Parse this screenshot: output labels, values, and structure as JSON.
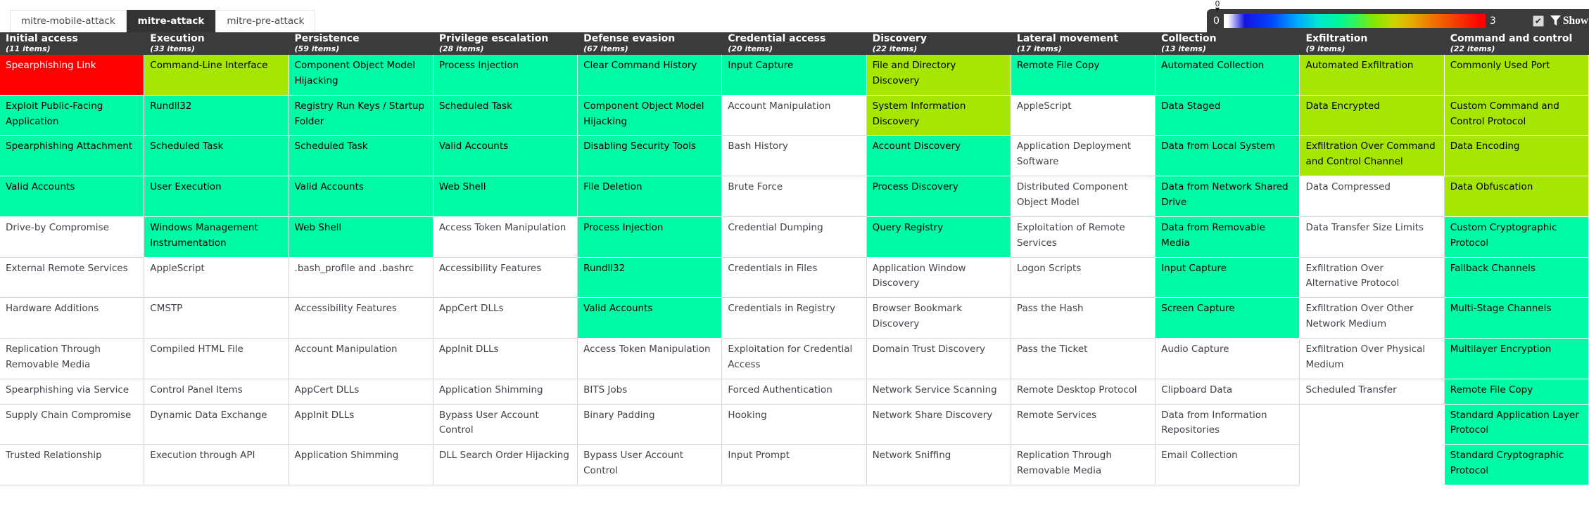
{
  "tabs": [
    {
      "label": "mitre-mobile-attack",
      "active": false
    },
    {
      "label": "mitre-attack",
      "active": true
    },
    {
      "label": "mitre-pre-attack",
      "active": false
    }
  ],
  "legend": {
    "min": "0",
    "max": "3",
    "handle_value": "0",
    "filter_checked": true,
    "checkmark": "✔",
    "show_all_label": "Show all"
  },
  "colors": {
    "score_1_green": "#00faa5",
    "score_2_lime": "#a5e603",
    "score_3_red": "#fe0000",
    "header_bg": "#3b3b3b"
  },
  "matrix": {
    "columns": [
      {
        "name": "Initial access",
        "count": "(11 items)",
        "items": [
          {
            "label": "Spearphishing Link",
            "color": "red"
          },
          {
            "label": "Exploit Public-Facing Application",
            "color": "green"
          },
          {
            "label": "Spearphishing Attachment",
            "color": "green"
          },
          {
            "label": "Valid Accounts",
            "color": "green"
          },
          {
            "label": "Drive-by Compromise",
            "color": "none"
          },
          {
            "label": "External Remote Services",
            "color": "none"
          },
          {
            "label": "Hardware Additions",
            "color": "none"
          },
          {
            "label": "Replication Through Removable Media",
            "color": "none"
          },
          {
            "label": "Spearphishing via Service",
            "color": "none"
          },
          {
            "label": "Supply Chain Compromise",
            "color": "none"
          },
          {
            "label": "Trusted Relationship",
            "color": "none"
          }
        ]
      },
      {
        "name": "Execution",
        "count": "(33 items)",
        "items": [
          {
            "label": "Command-Line Interface",
            "color": "lime"
          },
          {
            "label": "Rundll32",
            "color": "green"
          },
          {
            "label": "Scheduled Task",
            "color": "green"
          },
          {
            "label": "User Execution",
            "color": "green"
          },
          {
            "label": "Windows Management Instrumentation",
            "color": "green"
          },
          {
            "label": "AppleScript",
            "color": "none"
          },
          {
            "label": "CMSTP",
            "color": "none"
          },
          {
            "label": "Compiled HTML File",
            "color": "none"
          },
          {
            "label": "Control Panel Items",
            "color": "none"
          },
          {
            "label": "Dynamic Data Exchange",
            "color": "none"
          },
          {
            "label": "Execution through API",
            "color": "none"
          }
        ]
      },
      {
        "name": "Persistence",
        "count": "(59 items)",
        "items": [
          {
            "label": "Component Object Model Hijacking",
            "color": "green"
          },
          {
            "label": "Registry Run Keys / Startup Folder",
            "color": "green"
          },
          {
            "label": "Scheduled Task",
            "color": "green"
          },
          {
            "label": "Valid Accounts",
            "color": "green"
          },
          {
            "label": "Web Shell",
            "color": "green"
          },
          {
            "label": ".bash_profile and .bashrc",
            "color": "none"
          },
          {
            "label": "Accessibility Features",
            "color": "none"
          },
          {
            "label": "Account Manipulation",
            "color": "none"
          },
          {
            "label": "AppCert DLLs",
            "color": "none"
          },
          {
            "label": "AppInit DLLs",
            "color": "none"
          },
          {
            "label": "Application Shimming",
            "color": "none"
          }
        ]
      },
      {
        "name": "Privilege escalation",
        "count": "(28 items)",
        "items": [
          {
            "label": "Process Injection",
            "color": "green"
          },
          {
            "label": "Scheduled Task",
            "color": "green"
          },
          {
            "label": "Valid Accounts",
            "color": "green"
          },
          {
            "label": "Web Shell",
            "color": "green"
          },
          {
            "label": "Access Token Manipulation",
            "color": "none"
          },
          {
            "label": "Accessibility Features",
            "color": "none"
          },
          {
            "label": "AppCert DLLs",
            "color": "none"
          },
          {
            "label": "AppInit DLLs",
            "color": "none"
          },
          {
            "label": "Application Shimming",
            "color": "none"
          },
          {
            "label": "Bypass User Account Control",
            "color": "none"
          },
          {
            "label": "DLL Search Order Hijacking",
            "color": "none"
          }
        ]
      },
      {
        "name": "Defense evasion",
        "count": "(67 items)",
        "items": [
          {
            "label": "Clear Command History",
            "color": "green"
          },
          {
            "label": "Component Object Model Hijacking",
            "color": "green"
          },
          {
            "label": "Disabling Security Tools",
            "color": "green"
          },
          {
            "label": "File Deletion",
            "color": "green"
          },
          {
            "label": "Process Injection",
            "color": "green"
          },
          {
            "label": "Rundll32",
            "color": "green"
          },
          {
            "label": "Valid Accounts",
            "color": "green"
          },
          {
            "label": "Access Token Manipulation",
            "color": "none"
          },
          {
            "label": "BITS Jobs",
            "color": "none"
          },
          {
            "label": "Binary Padding",
            "color": "none"
          },
          {
            "label": "Bypass User Account Control",
            "color": "none"
          }
        ]
      },
      {
        "name": "Credential access",
        "count": "(20 items)",
        "items": [
          {
            "label": "Input Capture",
            "color": "green"
          },
          {
            "label": "Account Manipulation",
            "color": "none"
          },
          {
            "label": "Bash History",
            "color": "none"
          },
          {
            "label": "Brute Force",
            "color": "none"
          },
          {
            "label": "Credential Dumping",
            "color": "none"
          },
          {
            "label": "Credentials in Files",
            "color": "none"
          },
          {
            "label": "Credentials in Registry",
            "color": "none"
          },
          {
            "label": "Exploitation for Credential Access",
            "color": "none"
          },
          {
            "label": "Forced Authentication",
            "color": "none"
          },
          {
            "label": "Hooking",
            "color": "none"
          },
          {
            "label": "Input Prompt",
            "color": "none"
          }
        ]
      },
      {
        "name": "Discovery",
        "count": "(22 items)",
        "items": [
          {
            "label": "File and Directory Discovery",
            "color": "lime"
          },
          {
            "label": "System Information Discovery",
            "color": "lime"
          },
          {
            "label": "Account Discovery",
            "color": "green"
          },
          {
            "label": "Process Discovery",
            "color": "green"
          },
          {
            "label": "Query Registry",
            "color": "green"
          },
          {
            "label": "Application Window Discovery",
            "color": "none"
          },
          {
            "label": "Browser Bookmark Discovery",
            "color": "none"
          },
          {
            "label": "Domain Trust Discovery",
            "color": "none"
          },
          {
            "label": "Network Service Scanning",
            "color": "none"
          },
          {
            "label": "Network Share Discovery",
            "color": "none"
          },
          {
            "label": "Network Sniffing",
            "color": "none"
          }
        ]
      },
      {
        "name": "Lateral movement",
        "count": "(17 items)",
        "items": [
          {
            "label": "Remote File Copy",
            "color": "green"
          },
          {
            "label": "AppleScript",
            "color": "none"
          },
          {
            "label": "Application Deployment Software",
            "color": "none"
          },
          {
            "label": "Distributed Component Object Model",
            "color": "none"
          },
          {
            "label": "Exploitation of Remote Services",
            "color": "none"
          },
          {
            "label": "Logon Scripts",
            "color": "none"
          },
          {
            "label": "Pass the Hash",
            "color": "none"
          },
          {
            "label": "Pass the Ticket",
            "color": "none"
          },
          {
            "label": "Remote Desktop Protocol",
            "color": "none"
          },
          {
            "label": "Remote Services",
            "color": "none"
          },
          {
            "label": "Replication Through Removable Media",
            "color": "none"
          }
        ]
      },
      {
        "name": "Collection",
        "count": "(13 items)",
        "items": [
          {
            "label": "Automated Collection",
            "color": "green"
          },
          {
            "label": "Data Staged",
            "color": "green"
          },
          {
            "label": "Data from Local System",
            "color": "green"
          },
          {
            "label": "Data from Network Shared Drive",
            "color": "green"
          },
          {
            "label": "Data from Removable Media",
            "color": "green"
          },
          {
            "label": "Input Capture",
            "color": "green"
          },
          {
            "label": "Screen Capture",
            "color": "green"
          },
          {
            "label": "Audio Capture",
            "color": "none"
          },
          {
            "label": "Clipboard Data",
            "color": "none"
          },
          {
            "label": "Data from Information Repositories",
            "color": "none"
          },
          {
            "label": "Email Collection",
            "color": "none"
          }
        ]
      },
      {
        "name": "Exfiltration",
        "count": "(9 items)",
        "items": [
          {
            "label": "Automated Exfiltration",
            "color": "lime"
          },
          {
            "label": "Data Encrypted",
            "color": "lime"
          },
          {
            "label": "Exfiltration Over Command and Control Channel",
            "color": "lime"
          },
          {
            "label": "Data Compressed",
            "color": "none"
          },
          {
            "label": "Data Transfer Size Limits",
            "color": "none"
          },
          {
            "label": "Exfiltration Over Alternative Protocol",
            "color": "none"
          },
          {
            "label": "Exfiltration Over Other Network Medium",
            "color": "none"
          },
          {
            "label": "Exfiltration Over Physical Medium",
            "color": "none"
          },
          {
            "label": "Scheduled Transfer",
            "color": "none"
          }
        ]
      },
      {
        "name": "Command and control",
        "count": "(22 items)",
        "items": [
          {
            "label": "Commonly Used Port",
            "color": "lime"
          },
          {
            "label": "Custom Command and Control Protocol",
            "color": "lime"
          },
          {
            "label": "Data Encoding",
            "color": "lime"
          },
          {
            "label": "Data Obfuscation",
            "color": "lime"
          },
          {
            "label": "Custom Cryptographic Protocol",
            "color": "green"
          },
          {
            "label": "Fallback Channels",
            "color": "green"
          },
          {
            "label": "Multi-Stage Channels",
            "color": "green"
          },
          {
            "label": "Multilayer Encryption",
            "color": "green"
          },
          {
            "label": "Remote File Copy",
            "color": "green"
          },
          {
            "label": "Standard Application Layer Protocol",
            "color": "green"
          },
          {
            "label": "Standard Cryptographic Protocol",
            "color": "green"
          }
        ]
      }
    ]
  }
}
